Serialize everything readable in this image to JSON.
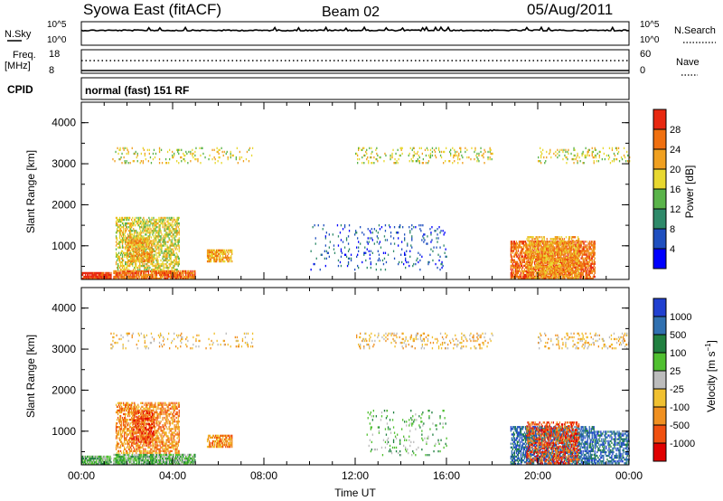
{
  "header": {
    "station": "Syowa East (fitACF)",
    "beam": "Beam 02",
    "date": "05/Aug/2011"
  },
  "summary_panel": {
    "nsky_label": "N.Sky",
    "nsky_ticks": [
      "10^5",
      "10^0"
    ],
    "nsearch_label": "N.Search",
    "nsearch_ticks": [
      "10^5",
      "10^0"
    ],
    "freq_label": "Freq.",
    "freq_unit": "[MHz]",
    "freq_ticks": [
      "18",
      "8"
    ],
    "nave_label": "Nave",
    "nave_ticks": [
      "60",
      "0"
    ],
    "cpid_label": "CPID",
    "cpid_value": "normal (fast) 151 RF"
  },
  "colors": {
    "power": [
      "#0000ff",
      "#1f4fbf",
      "#2f8a6a",
      "#5ab44a",
      "#e8d830",
      "#f0a020",
      "#f07010",
      "#e82810"
    ],
    "velocity": [
      "#e00000",
      "#f05010",
      "#f09020",
      "#f0c030",
      "#bcbcbc",
      "#50c030",
      "#208040",
      "#3070b0",
      "#2040d0"
    ]
  },
  "chart_data": [
    {
      "type": "heatmap",
      "name": "power",
      "ylabel": "Slant Range [km]",
      "xlabel": "",
      "yticks": [
        "4000",
        "3000",
        "2000",
        "1000"
      ],
      "ylim": [
        180,
        4500
      ],
      "xlim": [
        0,
        24
      ],
      "xticks": [
        "00:00",
        "04:00",
        "08:00",
        "12:00",
        "16:00",
        "20:00",
        "00:00"
      ],
      "colorbar": {
        "label": "Power [dB]",
        "ticks": [
          "28",
          "24",
          "20",
          "16",
          "12",
          "8",
          "4"
        ],
        "range": [
          0,
          30
        ]
      },
      "regions": [
        {
          "t": [
            0.0,
            1.3
          ],
          "r": [
            180,
            330
          ],
          "level": 7,
          "density": 0.9
        },
        {
          "t": [
            1.4,
            5.0
          ],
          "r": [
            180,
            400
          ],
          "level": 6,
          "density": 0.85
        },
        {
          "t": [
            1.5,
            4.3
          ],
          "r": [
            400,
            1700
          ],
          "level": 4,
          "density": 0.55
        },
        {
          "t": [
            2.0,
            3.1
          ],
          "r": [
            600,
            1200
          ],
          "level": 5,
          "density": 0.6
        },
        {
          "t": [
            5.5,
            6.6
          ],
          "r": [
            600,
            900
          ],
          "level": 5,
          "density": 0.7
        },
        {
          "t": [
            1.2,
            7.5
          ],
          "r": [
            3000,
            3400
          ],
          "level": 4,
          "density": 0.12
        },
        {
          "t": [
            10.0,
            12.5
          ],
          "r": [
            400,
            1500
          ],
          "level": 1,
          "density": 0.05
        },
        {
          "t": [
            12.5,
            16.0
          ],
          "r": [
            400,
            1500
          ],
          "level": 1,
          "density": 0.08
        },
        {
          "t": [
            12.0,
            18.0
          ],
          "r": [
            3000,
            3400
          ],
          "level": 4,
          "density": 0.15
        },
        {
          "t": [
            18.8,
            22.5
          ],
          "r": [
            180,
            1100
          ],
          "level": 6,
          "density": 0.7
        },
        {
          "t": [
            19.5,
            21.8
          ],
          "r": [
            200,
            1200
          ],
          "level": 5,
          "density": 0.5
        },
        {
          "t": [
            20.0,
            24.0
          ],
          "r": [
            3000,
            3400
          ],
          "level": 4,
          "density": 0.15
        }
      ]
    },
    {
      "type": "heatmap",
      "name": "velocity",
      "ylabel": "Slant Range [km]",
      "xlabel": "Time UT",
      "yticks": [
        "4000",
        "3000",
        "2000",
        "1000"
      ],
      "ylim": [
        180,
        4500
      ],
      "xlim": [
        0,
        24
      ],
      "xticks": [
        "00:00",
        "04:00",
        "08:00",
        "12:00",
        "16:00",
        "20:00",
        "00:00"
      ],
      "colorbar": {
        "label": "Velocity [m s^-1]",
        "ticks": [
          "1000",
          "500",
          "100",
          "25",
          "-25",
          "-100",
          "-500",
          "-1000"
        ],
        "range": [
          -1200,
          1200
        ]
      },
      "regions": [
        {
          "t": [
            0.0,
            1.3
          ],
          "r": [
            180,
            400
          ],
          "level": 5,
          "density": 0.85
        },
        {
          "t": [
            1.4,
            5.0
          ],
          "r": [
            180,
            450
          ],
          "level": 5,
          "density": 0.8
        },
        {
          "t": [
            1.5,
            4.3
          ],
          "r": [
            450,
            1700
          ],
          "level": 2,
          "density": 0.55
        },
        {
          "t": [
            2.2,
            3.2
          ],
          "r": [
            700,
            1500
          ],
          "level": 1,
          "density": 0.5
        },
        {
          "t": [
            5.5,
            6.6
          ],
          "r": [
            600,
            900
          ],
          "level": 2,
          "density": 0.7
        },
        {
          "t": [
            1.2,
            7.5
          ],
          "r": [
            3000,
            3400
          ],
          "level": 3,
          "density": 0.12
        },
        {
          "t": [
            12.5,
            16.0
          ],
          "r": [
            400,
            1500
          ],
          "level": 5,
          "density": 0.08
        },
        {
          "t": [
            12.0,
            18.0
          ],
          "r": [
            3000,
            3400
          ],
          "level": 3,
          "density": 0.15
        },
        {
          "t": [
            18.8,
            22.5
          ],
          "r": [
            180,
            1100
          ],
          "level": 7,
          "density": 0.6
        },
        {
          "t": [
            19.5,
            21.8
          ],
          "r": [
            200,
            1200
          ],
          "level": 1,
          "density": 0.45
        },
        {
          "t": [
            22.5,
            24.0
          ],
          "r": [
            200,
            1000
          ],
          "level": 7,
          "density": 0.5
        },
        {
          "t": [
            20.0,
            24.0
          ],
          "r": [
            3000,
            3400
          ],
          "level": 3,
          "density": 0.15
        }
      ]
    }
  ]
}
